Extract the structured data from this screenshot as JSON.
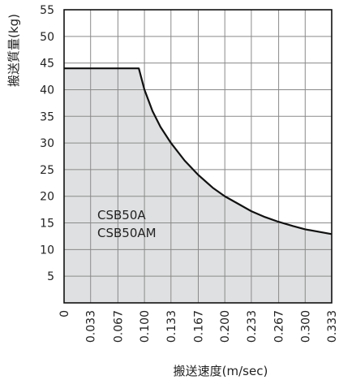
{
  "chart_data": {
    "type": "area",
    "title": "",
    "ylabel": "搬送質量(kg)",
    "xlabel": "搬送速度(m/sec)",
    "ylim": [
      0,
      55
    ],
    "xlim": [
      0,
      0.333
    ],
    "y_ticks": [
      "5",
      "10",
      "15",
      "20",
      "25",
      "30",
      "35",
      "40",
      "45",
      "50",
      "55"
    ],
    "y_tick_values": [
      5,
      10,
      15,
      20,
      25,
      30,
      35,
      40,
      45,
      50,
      55
    ],
    "x_ticks": [
      "0",
      "0.033",
      "0.067",
      "0.100",
      "0.133",
      "0.167",
      "0.200",
      "0.233",
      "0.267",
      "0.300",
      "0.333"
    ],
    "x_tick_values": [
      0,
      0.033,
      0.067,
      0.1,
      0.133,
      0.167,
      0.2,
      0.233,
      0.267,
      0.3,
      0.333
    ],
    "grid": true,
    "series": [
      {
        "name_lines": [
          "CSB50A",
          "CSB50AM"
        ],
        "x": [
          0,
          0.093,
          0.1,
          0.11,
          0.12,
          0.133,
          0.15,
          0.167,
          0.185,
          0.2,
          0.22,
          0.233,
          0.25,
          0.267,
          0.285,
          0.3,
          0.333
        ],
        "y": [
          44,
          44,
          40,
          36,
          33,
          30,
          26.7,
          24,
          21.6,
          20,
          18.3,
          17.2,
          16.1,
          15.2,
          14.4,
          13.8,
          12.9
        ]
      }
    ],
    "colors": {
      "fill": "#d9dadc",
      "line": "#111111",
      "grid": "#8a8a8a",
      "axis": "#111111"
    }
  }
}
